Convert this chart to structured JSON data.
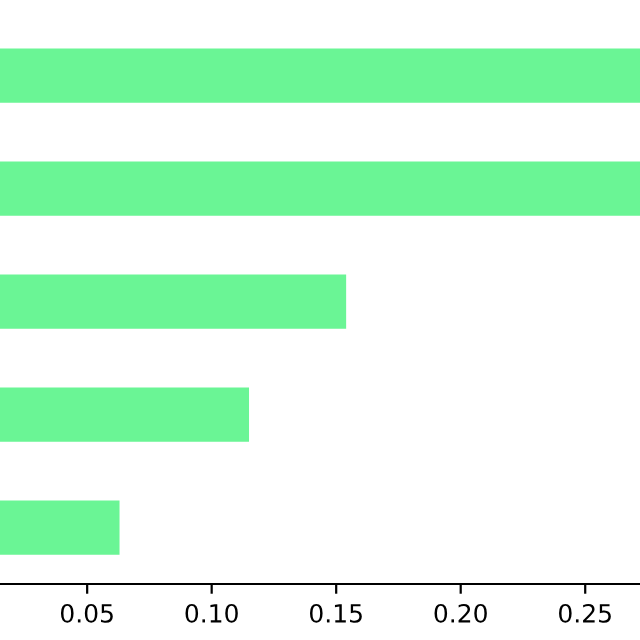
{
  "chart_data": {
    "type": "bar",
    "orientation": "horizontal",
    "categories": [
      null,
      null,
      null,
      null,
      null
    ],
    "values": [
      0.272,
      0.272,
      0.154,
      0.115,
      0.063
    ],
    "color": "#6af595",
    "xlim": [
      0.015,
      0.272
    ],
    "xticks": [
      0.05,
      {
        "value": 0.1,
        "label": "0.10"
      },
      0.15,
      {
        "value": 0.2,
        "label": "0.20"
      },
      0.25
    ],
    "tick_labels": "x",
    "grid": false,
    "legend": false
  }
}
